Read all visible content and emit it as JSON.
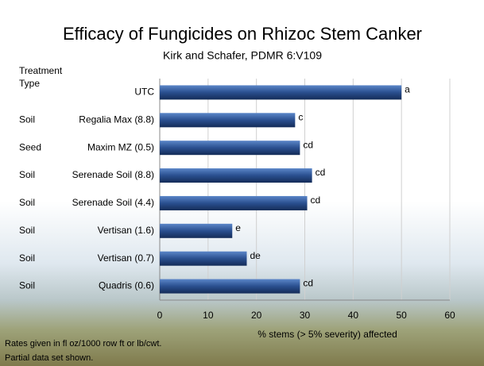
{
  "chart_data": {
    "type": "bar",
    "orientation": "horizontal",
    "title": "Efficacy of Fungicides on Rhizoc Stem Canker",
    "subtitle": "Kirk and Schafer, PDMR 6:V109",
    "treatment_header": [
      "Treatment",
      "Type"
    ],
    "treatment_types": [
      "",
      "Soil",
      "Seed",
      "Soil",
      "Soil",
      "Soil",
      "Soil",
      "Soil"
    ],
    "categories": [
      "UTC",
      "Regalia Max (8.8)",
      "Maxim MZ (0.5)",
      "Serenade Soil (8.8)",
      "Serenade Soil (4.4)",
      "Vertisan (1.6)",
      "Vertisan (0.7)",
      "Quadris (0.6)"
    ],
    "values": [
      50,
      28,
      29,
      31.5,
      30.5,
      15,
      18,
      29
    ],
    "letters": [
      "a",
      "c",
      "cd",
      "cd",
      "cd",
      "e",
      "de",
      "cd"
    ],
    "color": "#2a4f8f",
    "xlabel": "% stems (> 5% severity) affected",
    "xlim": [
      0,
      60
    ],
    "xticks": [
      0,
      10,
      20,
      30,
      40,
      50,
      60
    ],
    "grid": true,
    "footnotes": [
      "Rates given in fl oz/1000 row ft or lb/cwt.",
      "Partial data set shown."
    ]
  }
}
